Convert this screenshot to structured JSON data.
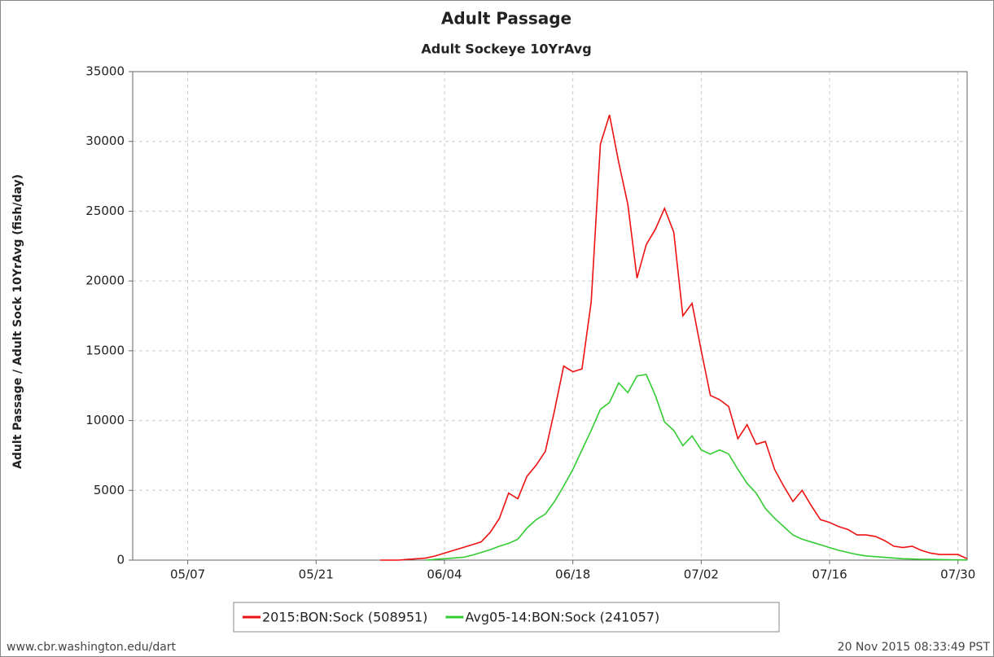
{
  "chart_data": {
    "type": "line",
    "title": "Adult Passage",
    "subtitle": "Adult Sockeye 10YrAvg",
    "ylabel": "Adult Passage / Adult Sock 10YrAvg (fish/day)",
    "footer_left": "www.cbr.washington.edu/dart",
    "footer_right": "20 Nov 2015 08:33:49 PST",
    "x": [
      148,
      149,
      150,
      151,
      152,
      153,
      154,
      155,
      156,
      157,
      158,
      159,
      160,
      161,
      162,
      163,
      164,
      165,
      166,
      167,
      168,
      169,
      170,
      171,
      172,
      173,
      174,
      175,
      176,
      177,
      178,
      179,
      180,
      181,
      182,
      183,
      184,
      185,
      186,
      187,
      188,
      189,
      190,
      191,
      192,
      193,
      194,
      195,
      196,
      197,
      198,
      199,
      200,
      201,
      202,
      203,
      204,
      205,
      206,
      207,
      208,
      209,
      210,
      211,
      212
    ],
    "series": [
      {
        "name": "2015:BON:Sock (508951)",
        "color": "#ee1111",
        "values": [
          0,
          0,
          0,
          50,
          100,
          150,
          300,
          500,
          700,
          900,
          1100,
          1300,
          2000,
          3000,
          4800,
          4400,
          6000,
          6800,
          7800,
          10700,
          13900,
          13500,
          13700,
          18500,
          29800,
          31900,
          28500,
          25500,
          20200,
          22600,
          23700,
          25200,
          23500,
          17500,
          18400,
          15000,
          11800,
          11500,
          11000,
          8700,
          9700,
          8300,
          8500,
          6500,
          5300,
          4200,
          5000,
          3900,
          2900,
          2700,
          2400,
          2200,
          1800,
          1800,
          1700,
          1400,
          1000,
          900,
          1000,
          700,
          500,
          400,
          400,
          400,
          100
        ]
      },
      {
        "name": "Avg05-14:BON:Sock (241057)",
        "color": "#33cc33",
        "values": [
          null,
          null,
          null,
          null,
          null,
          0,
          50,
          100,
          150,
          200,
          350,
          550,
          750,
          1000,
          1200,
          1500,
          2300,
          2900,
          3300,
          4200,
          5300,
          6500,
          7900,
          9300,
          10800,
          11300,
          12700,
          12000,
          13200,
          13300,
          11800,
          9900,
          9300,
          8200,
          8900,
          7900,
          7600,
          7900,
          7600,
          6500,
          5500,
          4800,
          3700,
          3000,
          2400,
          1800,
          1500,
          1300,
          1100,
          900,
          700,
          550,
          400,
          300,
          250,
          200,
          150,
          100,
          80,
          60,
          50,
          40,
          30,
          20,
          10
        ]
      }
    ],
    "xlim": [
      121,
      212
    ],
    "xticks": [
      {
        "value": 127,
        "label": "05/07"
      },
      {
        "value": 141,
        "label": "05/21"
      },
      {
        "value": 155,
        "label": "06/04"
      },
      {
        "value": 169,
        "label": "06/18"
      },
      {
        "value": 183,
        "label": "07/02"
      },
      {
        "value": 197,
        "label": "07/16"
      },
      {
        "value": 211,
        "label": "07/30"
      }
    ],
    "ylim": [
      0,
      35000
    ],
    "yticks": [
      0,
      5000,
      10000,
      15000,
      20000,
      25000,
      30000,
      35000
    ],
    "grid": true
  }
}
